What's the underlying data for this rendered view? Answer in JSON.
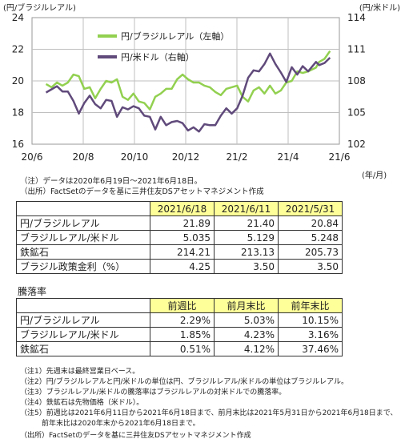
{
  "chart_data": {
    "type": "line",
    "left_unit": "(円/ブラジルレアル)",
    "right_unit": "(円/米ドル)",
    "x_unit": "(年/月)",
    "x_ticks": [
      "20/6",
      "20/8",
      "20/10",
      "20/12",
      "21/2",
      "21/4",
      "21/6"
    ],
    "left_ticks": [
      "24",
      "22",
      "20",
      "18",
      "16"
    ],
    "right_ticks": [
      "114",
      "111",
      "108",
      "105",
      "102"
    ],
    "ylim_left": [
      16,
      24
    ],
    "ylim_right": [
      102,
      114
    ],
    "xlim": [
      "2020-06-01",
      "2021-06-30"
    ],
    "grid": true,
    "legend_position": "top-left",
    "series": [
      {
        "name": "円/ブラジルレアル（左軸）",
        "axis": "left",
        "color": "#92d050",
        "points": [
          [
            "2020-06-19",
            19.8
          ],
          [
            "2020-06-26",
            19.6
          ],
          [
            "2020-07-03",
            19.9
          ],
          [
            "2020-07-10",
            19.7
          ],
          [
            "2020-07-17",
            19.9
          ],
          [
            "2020-07-24",
            20.4
          ],
          [
            "2020-07-31",
            20.3
          ],
          [
            "2020-08-07",
            19.5
          ],
          [
            "2020-08-14",
            19.6
          ],
          [
            "2020-08-21",
            18.9
          ],
          [
            "2020-08-28",
            19.5
          ],
          [
            "2020-09-04",
            20.0
          ],
          [
            "2020-09-11",
            19.9
          ],
          [
            "2020-09-18",
            20.1
          ],
          [
            "2020-09-25",
            19.0
          ],
          [
            "2020-10-02",
            18.8
          ],
          [
            "2020-10-09",
            19.2
          ],
          [
            "2020-10-16",
            18.7
          ],
          [
            "2020-10-23",
            18.6
          ],
          [
            "2020-10-30",
            18.2
          ],
          [
            "2020-11-06",
            19.0
          ],
          [
            "2020-11-13",
            19.2
          ],
          [
            "2020-11-20",
            19.5
          ],
          [
            "2020-11-27",
            19.5
          ],
          [
            "2020-12-04",
            20.1
          ],
          [
            "2020-12-11",
            20.4
          ],
          [
            "2020-12-18",
            20.1
          ],
          [
            "2020-12-25",
            19.9
          ],
          [
            "2021-01-01",
            19.9
          ],
          [
            "2021-01-08",
            19.7
          ],
          [
            "2021-01-15",
            19.6
          ],
          [
            "2021-01-22",
            19.3
          ],
          [
            "2021-01-29",
            19.1
          ],
          [
            "2021-02-05",
            19.5
          ],
          [
            "2021-02-12",
            19.6
          ],
          [
            "2021-02-19",
            19.7
          ],
          [
            "2021-02-26",
            19.0
          ],
          [
            "2021-03-05",
            18.7
          ],
          [
            "2021-03-12",
            19.4
          ],
          [
            "2021-03-19",
            19.6
          ],
          [
            "2021-03-26",
            19.2
          ],
          [
            "2021-04-02",
            19.7
          ],
          [
            "2021-04-09",
            19.2
          ],
          [
            "2021-04-16",
            19.4
          ],
          [
            "2021-04-23",
            19.9
          ],
          [
            "2021-04-30",
            20.0
          ],
          [
            "2021-05-07",
            20.6
          ],
          [
            "2021-05-14",
            20.5
          ],
          [
            "2021-05-21",
            20.6
          ],
          [
            "2021-05-31",
            20.84
          ],
          [
            "2021-06-04",
            21.2
          ],
          [
            "2021-06-11",
            21.4
          ],
          [
            "2021-06-18",
            21.89
          ]
        ]
      },
      {
        "name": "円/米ドル（右軸）",
        "axis": "right",
        "color": "#604a7b",
        "points": [
          [
            "2020-06-19",
            106.9
          ],
          [
            "2020-06-26",
            107.2
          ],
          [
            "2020-07-03",
            107.5
          ],
          [
            "2020-07-10",
            107.0
          ],
          [
            "2020-07-17",
            107.0
          ],
          [
            "2020-07-24",
            106.1
          ],
          [
            "2020-07-31",
            104.9
          ],
          [
            "2020-08-07",
            105.9
          ],
          [
            "2020-08-14",
            106.6
          ],
          [
            "2020-08-21",
            105.8
          ],
          [
            "2020-08-28",
            105.4
          ],
          [
            "2020-09-04",
            106.2
          ],
          [
            "2020-09-11",
            106.1
          ],
          [
            "2020-09-18",
            104.6
          ],
          [
            "2020-09-25",
            105.5
          ],
          [
            "2020-10-02",
            105.3
          ],
          [
            "2020-10-09",
            105.6
          ],
          [
            "2020-10-16",
            105.4
          ],
          [
            "2020-10-23",
            104.7
          ],
          [
            "2020-10-30",
            104.6
          ],
          [
            "2020-11-06",
            103.4
          ],
          [
            "2020-11-13",
            104.6
          ],
          [
            "2020-11-20",
            103.8
          ],
          [
            "2020-11-27",
            104.1
          ],
          [
            "2020-12-04",
            104.2
          ],
          [
            "2020-12-11",
            104.0
          ],
          [
            "2020-12-18",
            103.3
          ],
          [
            "2020-12-25",
            103.6
          ],
          [
            "2021-01-01",
            103.2
          ],
          [
            "2021-01-08",
            103.9
          ],
          [
            "2021-01-15",
            103.8
          ],
          [
            "2021-01-22",
            103.8
          ],
          [
            "2021-01-29",
            104.7
          ],
          [
            "2021-02-05",
            105.4
          ],
          [
            "2021-02-12",
            104.9
          ],
          [
            "2021-02-19",
            105.4
          ],
          [
            "2021-02-26",
            106.6
          ],
          [
            "2021-03-05",
            108.3
          ],
          [
            "2021-03-12",
            109.0
          ],
          [
            "2021-03-19",
            108.9
          ],
          [
            "2021-03-26",
            109.6
          ],
          [
            "2021-04-02",
            110.6
          ],
          [
            "2021-04-09",
            109.6
          ],
          [
            "2021-04-16",
            108.8
          ],
          [
            "2021-04-23",
            107.9
          ],
          [
            "2021-04-30",
            109.3
          ],
          [
            "2021-05-07",
            108.6
          ],
          [
            "2021-05-14",
            109.4
          ],
          [
            "2021-05-21",
            108.9
          ],
          [
            "2021-05-31",
            109.8
          ],
          [
            "2021-06-04",
            109.5
          ],
          [
            "2021-06-11",
            109.7
          ],
          [
            "2021-06-18",
            110.2
          ]
        ]
      }
    ]
  },
  "notes_top": [
    "（注）データは2020年6月19日～2021年6月18日。",
    "（出所）FactSetのデータを基に三井住友DSアセットマネジメント作成"
  ],
  "table1": {
    "headers": [
      "2021/6/18",
      "2021/6/11",
      "2021/5/31"
    ],
    "rows": [
      {
        "label": "円/ブラジルレアル",
        "values": [
          "21.89",
          "21.40",
          "20.84"
        ]
      },
      {
        "label": "ブラジルレアル/米ドル",
        "values": [
          "5.035",
          "5.129",
          "5.248"
        ]
      },
      {
        "label": "鉄鉱石",
        "values": [
          "214.21",
          "213.13",
          "205.73"
        ]
      },
      {
        "label": "ブラジル政策金利（%）",
        "values": [
          "4.25",
          "3.50",
          "3.50"
        ]
      }
    ]
  },
  "table2": {
    "title": "騰落率",
    "headers": [
      "前週比",
      "前月末比",
      "前年末比"
    ],
    "rows": [
      {
        "label": "円/ブラジルレアル",
        "values": [
          "2.29%",
          "5.03%",
          "10.15%"
        ]
      },
      {
        "label": "ブラジルレアル/米ドル",
        "values": [
          "1.85%",
          "4.23%",
          "3.16%"
        ]
      },
      {
        "label": "鉄鉱石",
        "values": [
          "0.51%",
          "4.12%",
          "37.46%"
        ]
      }
    ]
  },
  "notes_bottom": [
    "（注1）先週末は最終営業日ベース。",
    "（注2）円/ブラジルレアルと円/米ドルの単位は円、ブラジルレアル/米ドルの単位はブラジルレアル。",
    "（注3）ブラジルレアル/米ドルの騰落率はブラジルレアルの対米ドルでの騰落率。",
    "（注4）鉄鉱石は先物価格（米ドル）。",
    "（注5）前週比は2021年6月11日から2021年6月18日まで、前月末比は2021年5月31日から2021年6月18日まで、",
    "　　　前年末比は2020年末から2021年6月18日まで。",
    "（出所）FactSetのデータを基に三井住友DSアセットマネジメント作成"
  ]
}
